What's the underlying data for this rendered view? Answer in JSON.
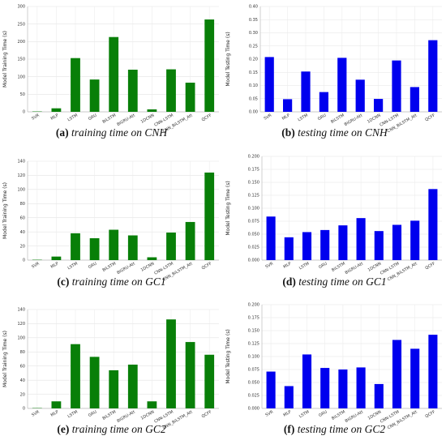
{
  "panels": [
    {
      "caption_tag": "(a)",
      "caption_text": "training time on CNH",
      "chart_data": {
        "type": "bar",
        "categories": [
          "SVR",
          "MLP",
          "LSTM",
          "GRU",
          "BiLSTM",
          "BiGRU-Att",
          "1DCNN",
          "CNN-LSTM",
          "CNN_BiLSTM_Att",
          "QCFF"
        ],
        "values": [
          1,
          10,
          153,
          92,
          213,
          120,
          7,
          121,
          83,
          263
        ],
        "color": "#087f08",
        "ylabel": "Model Training Time (s)",
        "ylim": [
          0,
          300
        ],
        "yticks": [
          0,
          50,
          100,
          150,
          200,
          250,
          300
        ],
        "ytick_labels": [
          "0",
          "50",
          "100",
          "150",
          "200",
          "250",
          "300"
        ],
        "grid": true
      }
    },
    {
      "caption_tag": "(b)",
      "caption_text": "testing time on CNH",
      "chart_data": {
        "type": "bar",
        "categories": [
          "SVR",
          "MLP",
          "LSTM",
          "GRU",
          "BiLSTM",
          "BiGRU-Att",
          "1DCNN",
          "CNN-LSTM",
          "CNN_BiLSTM_Att",
          "QCFF"
        ],
        "values": [
          0.208,
          0.048,
          0.153,
          0.075,
          0.205,
          0.122,
          0.049,
          0.195,
          0.094,
          0.272
        ],
        "color": "#0000ee",
        "ylabel": "Model Testing Time (s)",
        "ylim": [
          0,
          0.4
        ],
        "yticks": [
          0,
          0.05,
          0.1,
          0.15,
          0.2,
          0.25,
          0.3,
          0.35,
          0.4
        ],
        "ytick_labels": [
          "0.00",
          "0.05",
          "0.10",
          "0.15",
          "0.20",
          "0.25",
          "0.30",
          "0.35",
          "0.40"
        ],
        "grid": true
      }
    },
    {
      "caption_tag": "(c)",
      "caption_text": "training time on GC1",
      "chart_data": {
        "type": "bar",
        "categories": [
          "SVR",
          "MLP",
          "LSTM",
          "GRU",
          "BiLSTM",
          "BiGRU-Att",
          "1DCNN",
          "CNN-LSTM",
          "CNN_BiLSTM_Att",
          "QCFF"
        ],
        "values": [
          0.5,
          5,
          38,
          31,
          43,
          35,
          4,
          39,
          54,
          124
        ],
        "color": "#087f08",
        "ylabel": "Model Training Time (s)",
        "ylim": [
          0,
          140
        ],
        "yticks": [
          0,
          20,
          40,
          60,
          80,
          100,
          120,
          140
        ],
        "ytick_labels": [
          "0",
          "20",
          "40",
          "60",
          "80",
          "100",
          "120",
          "140"
        ],
        "grid": true
      }
    },
    {
      "caption_tag": "(d)",
      "caption_text": "testing time on GC1",
      "chart_data": {
        "type": "bar",
        "categories": [
          "SVR",
          "MLP",
          "LSTM",
          "GRU",
          "BiLSTM",
          "BiGRU-Att",
          "1DCNN",
          "CNN-LSTM",
          "CNN_BiLSTM_Att",
          "QCFF"
        ],
        "values": [
          0.084,
          0.044,
          0.054,
          0.058,
          0.067,
          0.081,
          0.056,
          0.068,
          0.076,
          0.137
        ],
        "color": "#0000ee",
        "ylabel": "Model Testing Time (s)",
        "ylim": [
          0,
          0.2
        ],
        "yticks": [
          0,
          0.025,
          0.05,
          0.075,
          0.1,
          0.125,
          0.15,
          0.175,
          0.2
        ],
        "ytick_labels": [
          "0.000",
          "0.025",
          "0.050",
          "0.075",
          "0.100",
          "0.125",
          "0.150",
          "0.175",
          "0.200"
        ],
        "grid": true
      }
    },
    {
      "caption_tag": "(e)",
      "caption_text": "training time on GC2",
      "chart_data": {
        "type": "bar",
        "categories": [
          "SVR",
          "MLP",
          "LSTM",
          "GRU",
          "BiLSTM",
          "BiGRU-Att",
          "1DCNN",
          "CNN-LSTM",
          "CNN_BiLSTM_Att",
          "QCFF"
        ],
        "values": [
          0.5,
          10,
          91,
          73,
          54,
          62,
          10,
          126,
          94,
          76
        ],
        "color": "#087f08",
        "ylabel": "Model Training Time (s)",
        "ylim": [
          0,
          140
        ],
        "yticks": [
          0,
          20,
          40,
          60,
          80,
          100,
          120,
          140
        ],
        "ytick_labels": [
          "0",
          "20",
          "40",
          "60",
          "80",
          "100",
          "120",
          "140"
        ],
        "grid": true
      }
    },
    {
      "caption_tag": "(f)",
      "caption_text": "testing time on GC2",
      "chart_data": {
        "type": "bar",
        "categories": [
          "SVR",
          "MLP",
          "LSTM",
          "GRU",
          "BiLSTM",
          "BiGRU-Att",
          "1DCNN",
          "CNN-LSTM",
          "CNN_BiLSTM_Att",
          "QCFF"
        ],
        "values": [
          0.071,
          0.043,
          0.104,
          0.078,
          0.075,
          0.079,
          0.047,
          0.132,
          0.115,
          0.142
        ],
        "color": "#0000ee",
        "ylabel": "Model Testing Time (s)",
        "ylim": [
          0,
          0.2
        ],
        "yticks": [
          0,
          0.025,
          0.05,
          0.075,
          0.1,
          0.125,
          0.15,
          0.175,
          0.2
        ],
        "ytick_labels": [
          "0.000",
          "0.025",
          "0.050",
          "0.075",
          "0.100",
          "0.125",
          "0.150",
          "0.175",
          "0.200"
        ],
        "grid": true
      }
    }
  ]
}
